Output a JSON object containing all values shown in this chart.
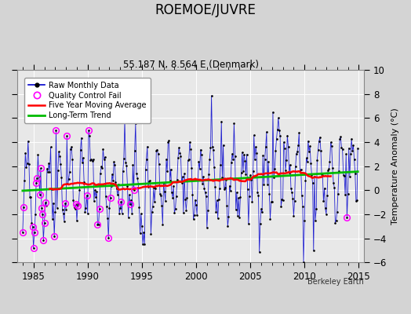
{
  "title": "ROEMOE/JUVRE",
  "subtitle": "55.187 N, 8.564 E (Denmark)",
  "ylabel": "Temperature Anomaly (°C)",
  "attribution": "Berkeley Earth",
  "xlim": [
    1983.5,
    2015.5
  ],
  "ylim": [
    -6,
    10
  ],
  "yticks": [
    -6,
    -4,
    -2,
    0,
    2,
    4,
    6,
    8,
    10
  ],
  "xticks": [
    1985,
    1990,
    1995,
    2000,
    2005,
    2010,
    2015
  ],
  "fig_bg": "#d4d4d4",
  "plot_bg": "#e8e8e8",
  "raw_color": "#0000cc",
  "ma_color": "#ff0000",
  "trend_color": "#00bb00",
  "qc_color": "#ff00ff"
}
